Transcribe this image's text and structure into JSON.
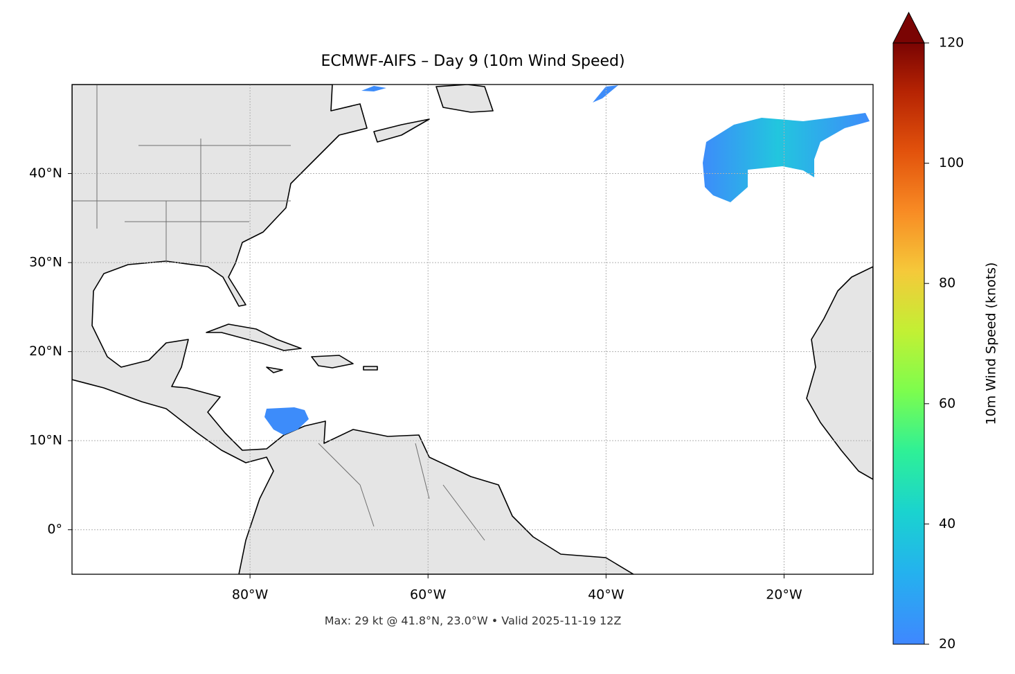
{
  "map": {
    "title": "ECMWF-AIFS – Day 9 (10m Wind Speed)",
    "xlim": [
      -100,
      -10
    ],
    "ylim": [
      -5,
      50
    ],
    "xticks": [
      {
        "value": -80,
        "label": "80°W"
      },
      {
        "value": -60,
        "label": "60°W"
      },
      {
        "value": -40,
        "label": "40°W"
      },
      {
        "value": -20,
        "label": "20°W"
      }
    ],
    "yticks": [
      {
        "value": 0,
        "label": "0°"
      },
      {
        "value": 10,
        "label": "10°N"
      },
      {
        "value": 20,
        "label": "20°N"
      },
      {
        "value": 30,
        "label": "30°N"
      },
      {
        "value": 40,
        "label": "40°N"
      }
    ],
    "grid": true
  },
  "colorbar": {
    "label": "10m Wind Speed (knots)",
    "clim": [
      20,
      120
    ],
    "ticks": [
      20,
      40,
      60,
      80,
      100,
      120
    ]
  },
  "footer": "Max: 29 kt @ 41.8°N, 23.0°W • Valid 2025-11-19 12Z"
}
